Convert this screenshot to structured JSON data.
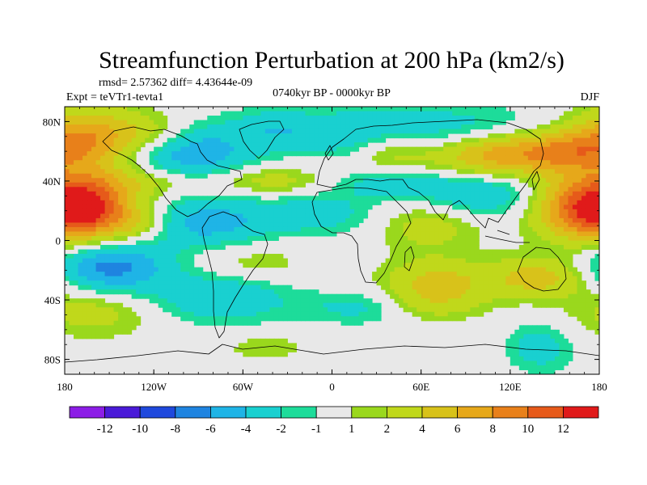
{
  "chart_data": {
    "type": "heatmap",
    "title": "Streamfunction Perturbation at 200 hPa (km2/s)",
    "stats": "rmsd= 2.57362 diff= 4.43644e-09",
    "experiment": "Expt = teVTr1-tevta1",
    "period": "0740kyr BP - 0000kyr BP",
    "season": "DJF",
    "projection": "cylindrical equidistant, centered on 0",
    "x_range": [
      -180,
      180
    ],
    "y_range": [
      -90,
      90
    ],
    "x_ticks": [
      {
        "value": -180,
        "label": "180"
      },
      {
        "value": -120,
        "label": "120W"
      },
      {
        "value": -60,
        "label": "60W"
      },
      {
        "value": 0,
        "label": "0"
      },
      {
        "value": 60,
        "label": "60E"
      },
      {
        "value": 120,
        "label": "120E"
      },
      {
        "value": 180,
        "label": "180"
      }
    ],
    "y_ticks": [
      {
        "value": 80,
        "label": "80N"
      },
      {
        "value": 40,
        "label": "40N"
      },
      {
        "value": 0,
        "label": "0"
      },
      {
        "value": -40,
        "label": "40S"
      },
      {
        "value": -80,
        "label": "80S"
      }
    ],
    "colorbar": {
      "colors": [
        "#8c1de6",
        "#4a1ad8",
        "#1f49dd",
        "#1f84e0",
        "#1fb4e6",
        "#19d0d0",
        "#1ddc9a",
        "#e8e8e8",
        "#9ad81d",
        "#c0d81b",
        "#d8c21a",
        "#e6a81a",
        "#e8801a",
        "#e65a1a",
        "#e01a1a"
      ],
      "levels": [
        -12,
        -10,
        -8,
        -6,
        -4,
        -2,
        -1,
        1,
        2,
        4,
        6,
        8,
        10,
        12
      ]
    },
    "features": [
      {
        "lon": -165,
        "lat": 70,
        "sx": 25,
        "sy": 14,
        "value": 7
      },
      {
        "lon": -120,
        "lat": 72,
        "sx": 20,
        "sy": 10,
        "value": 3
      },
      {
        "lon": -95,
        "lat": 58,
        "sx": 28,
        "sy": 14,
        "value": -6
      },
      {
        "lon": -40,
        "lat": 75,
        "sx": 20,
        "sy": 10,
        "value": -3
      },
      {
        "lon": 10,
        "lat": 72,
        "sx": 28,
        "sy": 11,
        "value": -3
      },
      {
        "lon": 80,
        "lat": 75,
        "sx": 45,
        "sy": 12,
        "value": -3
      },
      {
        "lon": 110,
        "lat": 58,
        "sx": 30,
        "sy": 10,
        "value": 7
      },
      {
        "lon": 160,
        "lat": 60,
        "sx": 25,
        "sy": 10,
        "value": 6
      },
      {
        "lon": 40,
        "lat": 60,
        "sx": 18,
        "sy": 10,
        "value": 3
      },
      {
        "lon": -120,
        "lat": 40,
        "sx": 35,
        "sy": 8,
        "value": 3
      },
      {
        "lon": -40,
        "lat": 40,
        "sx": 28,
        "sy": 7,
        "value": 3
      },
      {
        "lon": 40,
        "lat": 38,
        "sx": 30,
        "sy": 7,
        "value": -3
      },
      {
        "lon": 100,
        "lat": 30,
        "sx": 28,
        "sy": 10,
        "value": -4
      },
      {
        "lon": 165,
        "lat": 22,
        "sx": 22,
        "sy": 15,
        "value": 8
      },
      {
        "lon": -165,
        "lat": 22,
        "sx": 22,
        "sy": 15,
        "value": 12
      },
      {
        "lon": -130,
        "lat": 12,
        "sx": 16,
        "sy": 8,
        "value": 3
      },
      {
        "lon": -85,
        "lat": 12,
        "sx": 30,
        "sy": 12,
        "value": -5
      },
      {
        "lon": -10,
        "lat": 18,
        "sx": 30,
        "sy": 10,
        "value": -3
      },
      {
        "lon": 65,
        "lat": 10,
        "sx": 25,
        "sy": 12,
        "value": 3
      },
      {
        "lon": -55,
        "lat": -15,
        "sx": 28,
        "sy": 10,
        "value": 2
      },
      {
        "lon": -150,
        "lat": -18,
        "sx": 28,
        "sy": 12,
        "value": -7
      },
      {
        "lon": -75,
        "lat": -38,
        "sx": 32,
        "sy": 12,
        "value": -4
      },
      {
        "lon": 70,
        "lat": -30,
        "sx": 25,
        "sy": 12,
        "value": 5
      },
      {
        "lon": 140,
        "lat": -25,
        "sx": 25,
        "sy": 10,
        "value": 5
      },
      {
        "lon": 25,
        "lat": -45,
        "sx": 30,
        "sy": 8,
        "value": -3
      },
      {
        "lon": -160,
        "lat": -48,
        "sx": 28,
        "sy": 12,
        "value": 3
      },
      {
        "lon": 60,
        "lat": -45,
        "sx": 25,
        "sy": 7,
        "value": 2
      },
      {
        "lon": 140,
        "lat": -72,
        "sx": 16,
        "sy": 12,
        "value": -3
      },
      {
        "lon": -45,
        "lat": -72,
        "sx": 18,
        "sy": 6,
        "value": 2
      }
    ]
  }
}
